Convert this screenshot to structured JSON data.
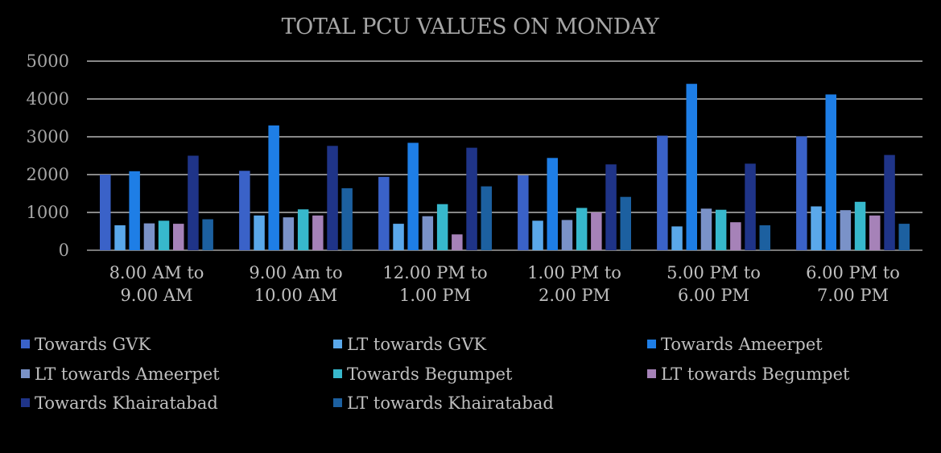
{
  "chart_data": {
    "type": "bar",
    "title": "TOTAL PCU VALUES ON MONDAY",
    "xlabel": "",
    "ylabel": "",
    "ylim": [
      0,
      5000
    ],
    "yticks": [
      0,
      1000,
      2000,
      3000,
      4000,
      5000
    ],
    "grid": true,
    "legend_position": "bottom",
    "categories": [
      [
        "8.00 AM to",
        "9.00 AM"
      ],
      [
        "9.00 Am to",
        "10.00 AM"
      ],
      [
        "12.00 PM to",
        "1.00 PM"
      ],
      [
        "1.00 PM to",
        "2.00 PM"
      ],
      [
        "5.00 PM to",
        "6.00 PM"
      ],
      [
        "6.00 PM to",
        "7.00 PM"
      ]
    ],
    "series": [
      {
        "name": "Towards GVK",
        "color": "#3a62c8",
        "values": [
          2000,
          2100,
          1940,
          1980,
          3030,
          3010
        ]
      },
      {
        "name": "LT towards GVK",
        "color": "#5aa8ea",
        "values": [
          660,
          920,
          700,
          780,
          630,
          1160
        ]
      },
      {
        "name": "Towards Ameerpet",
        "color": "#1e7ee6",
        "values": [
          2090,
          3300,
          2840,
          2440,
          4400,
          4120
        ]
      },
      {
        "name": "LT towards Ameerpet",
        "color": "#7a92c8",
        "values": [
          710,
          870,
          900,
          800,
          1100,
          1060
        ]
      },
      {
        "name": "Towards Begumpet",
        "color": "#37b8cc",
        "values": [
          780,
          1080,
          1220,
          1120,
          1070,
          1280
        ]
      },
      {
        "name": "LT towards Begumpet",
        "color": "#a682b8",
        "values": [
          700,
          920,
          420,
          1000,
          740,
          920
        ]
      },
      {
        "name": "Towards Khairatabad",
        "color": "#1f3488",
        "values": [
          2500,
          2760,
          2710,
          2270,
          2290,
          2520
        ]
      },
      {
        "name": "LT towards Khairatabad",
        "color": "#1c60a0",
        "values": [
          820,
          1640,
          1690,
          1410,
          660,
          700
        ]
      }
    ]
  }
}
